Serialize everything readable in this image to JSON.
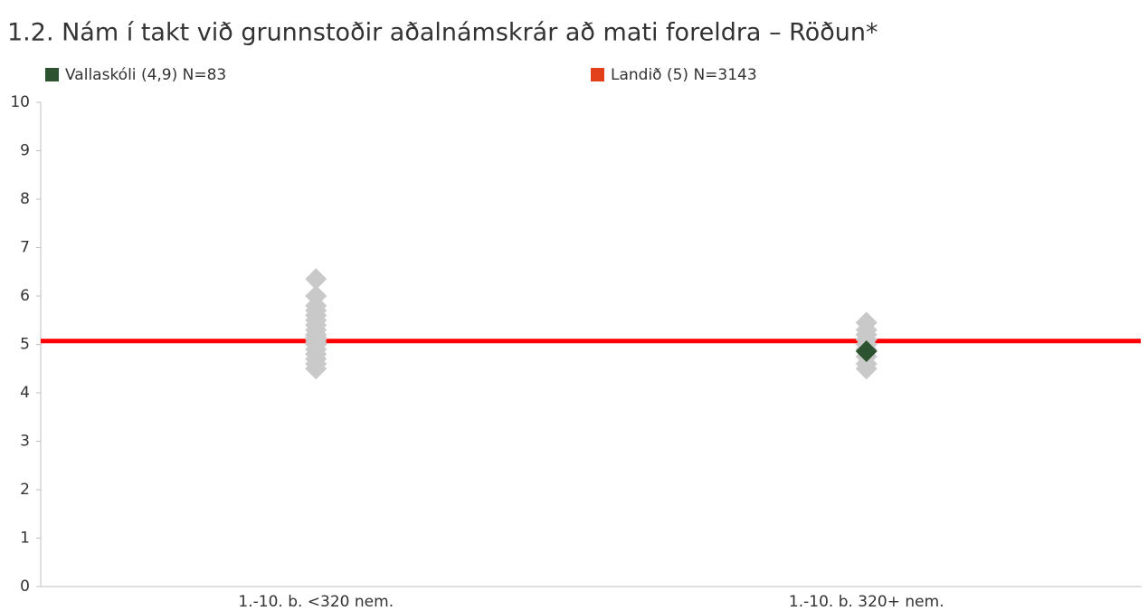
{
  "chart_data": {
    "type": "scatter",
    "title": "1.2. Nám í takt við grunnstoðir aðalnámskrár að mati foreldra – Röðun*",
    "categories": [
      "1.-10. b. <320 nem.",
      "1.-10. b. 320+ nem."
    ],
    "ylim": [
      0,
      10
    ],
    "yticks": [
      0,
      1,
      2,
      3,
      4,
      5,
      6,
      7,
      8,
      9,
      10
    ],
    "series": [
      {
        "color": "#c9c9c9",
        "values": [
          [
            4.5,
            4.6,
            4.7,
            4.8,
            4.9,
            5.0,
            5.05,
            5.1,
            5.15,
            5.2,
            5.3,
            5.4,
            5.5,
            5.6,
            5.7,
            5.8,
            6.0,
            6.35
          ],
          [
            4.5,
            4.6,
            4.75,
            4.9,
            5.0,
            5.1,
            5.2,
            5.3,
            5.45
          ]
        ]
      },
      {
        "name": "Vallaskóli (4,9) N=83",
        "color": "#2d5230",
        "values": [
          null,
          4.86
        ]
      },
      {
        "name": "Landið (5) N=3143",
        "color": "#ff0000",
        "legend_color": "#e2401a",
        "mark": "line",
        "values": [
          5.07
        ]
      }
    ]
  }
}
